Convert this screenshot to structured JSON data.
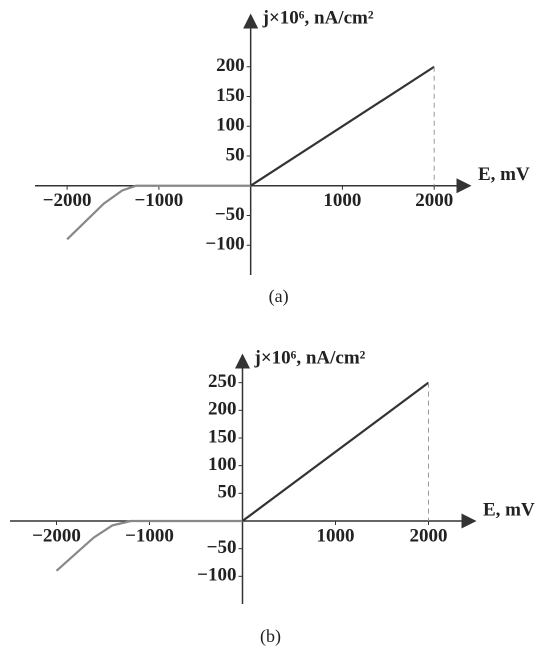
{
  "chart_data": [
    {
      "type": "line",
      "caption": "(a)",
      "xlabel": "E, mV",
      "ylabel": "j×10⁶, nA/cm²",
      "xlim": [
        -2350,
        2390
      ],
      "ylim": [
        -150,
        287
      ],
      "xticks": [
        {
          "value": -2000,
          "label": "−2000"
        },
        {
          "value": -1000,
          "label": "−1000"
        },
        1000,
        2000
      ],
      "yticks": [
        {
          "value": -100,
          "label": "−100"
        },
        {
          "value": -50,
          "label": "−50"
        },
        50,
        100,
        150,
        200
      ],
      "series": [
        {
          "color": "#888888",
          "x": [
            -2000,
            -1800,
            -1600,
            -1400,
            -1250,
            0
          ],
          "values": [
            -90,
            -60,
            -30,
            -8,
            0,
            0
          ]
        },
        {
          "color": "#333333",
          "x": [
            0,
            2000
          ],
          "values": [
            0,
            200
          ]
        }
      ]
    },
    {
      "type": "line",
      "caption": "(b)",
      "xlabel": "E, mV",
      "ylabel": "j×10⁶, nA/cm²",
      "xlim": [
        -2500,
        2500
      ],
      "ylim": [
        -150,
        300
      ],
      "xticks": [
        {
          "value": -2000,
          "label": "−2000"
        },
        {
          "value": -1000,
          "label": "−1000"
        },
        1000,
        2000
      ],
      "yticks": [
        {
          "value": -100,
          "label": "−100"
        },
        {
          "value": -50,
          "label": "−50"
        },
        50,
        100,
        150,
        200,
        250
      ],
      "series": [
        {
          "color": "#888888",
          "x": [
            -2000,
            -1800,
            -1600,
            -1400,
            -1200,
            0
          ],
          "values": [
            -90,
            -60,
            -30,
            -8,
            0,
            0
          ]
        },
        {
          "color": "#333333",
          "x": [
            0,
            2000
          ],
          "values": [
            0,
            250
          ]
        }
      ]
    }
  ]
}
